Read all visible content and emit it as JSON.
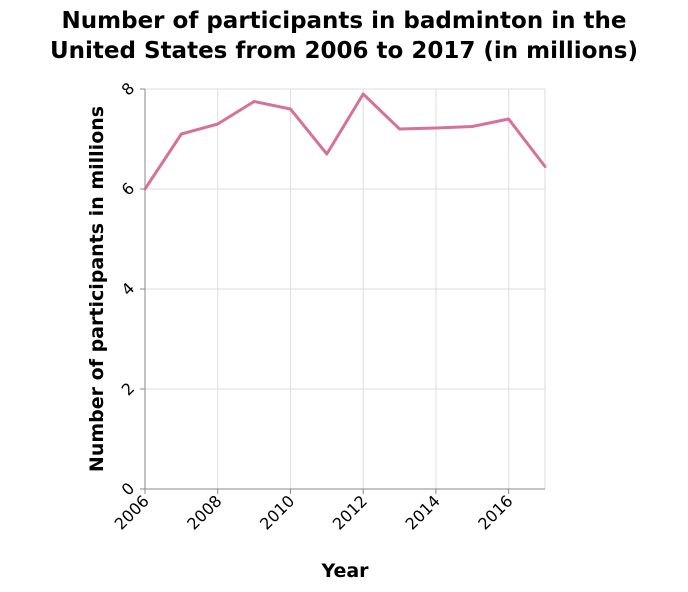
{
  "chart_data": {
    "type": "line",
    "title_lines": [
      "Number of participants in badminton in the",
      "United States from 2006 to 2017 (in millions)"
    ],
    "xlabel": "Year",
    "ylabel": "Number of participants in millions",
    "xlim": [
      2006,
      2017
    ],
    "ylim": [
      0,
      8
    ],
    "x_ticks": [
      2006,
      2008,
      2010,
      2012,
      2014,
      2016
    ],
    "y_ticks": [
      0,
      2,
      4,
      6,
      8
    ],
    "grid": true,
    "series": [
      {
        "color": "#d6729a",
        "points": [
          {
            "x": 2006,
            "y": 6.0
          },
          {
            "x": 2007,
            "y": 7.1
          },
          {
            "x": 2008,
            "y": 7.3
          },
          {
            "x": 2009,
            "y": 7.75
          },
          {
            "x": 2010,
            "y": 7.6
          },
          {
            "x": 2011,
            "y": 6.7
          },
          {
            "x": 2012,
            "y": 7.9
          },
          {
            "x": 2013,
            "y": 7.2
          },
          {
            "x": 2014,
            "y": 7.22
          },
          {
            "x": 2015,
            "y": 7.25
          },
          {
            "x": 2016,
            "y": 7.4
          },
          {
            "x": 2017,
            "y": 6.45
          }
        ]
      }
    ]
  }
}
